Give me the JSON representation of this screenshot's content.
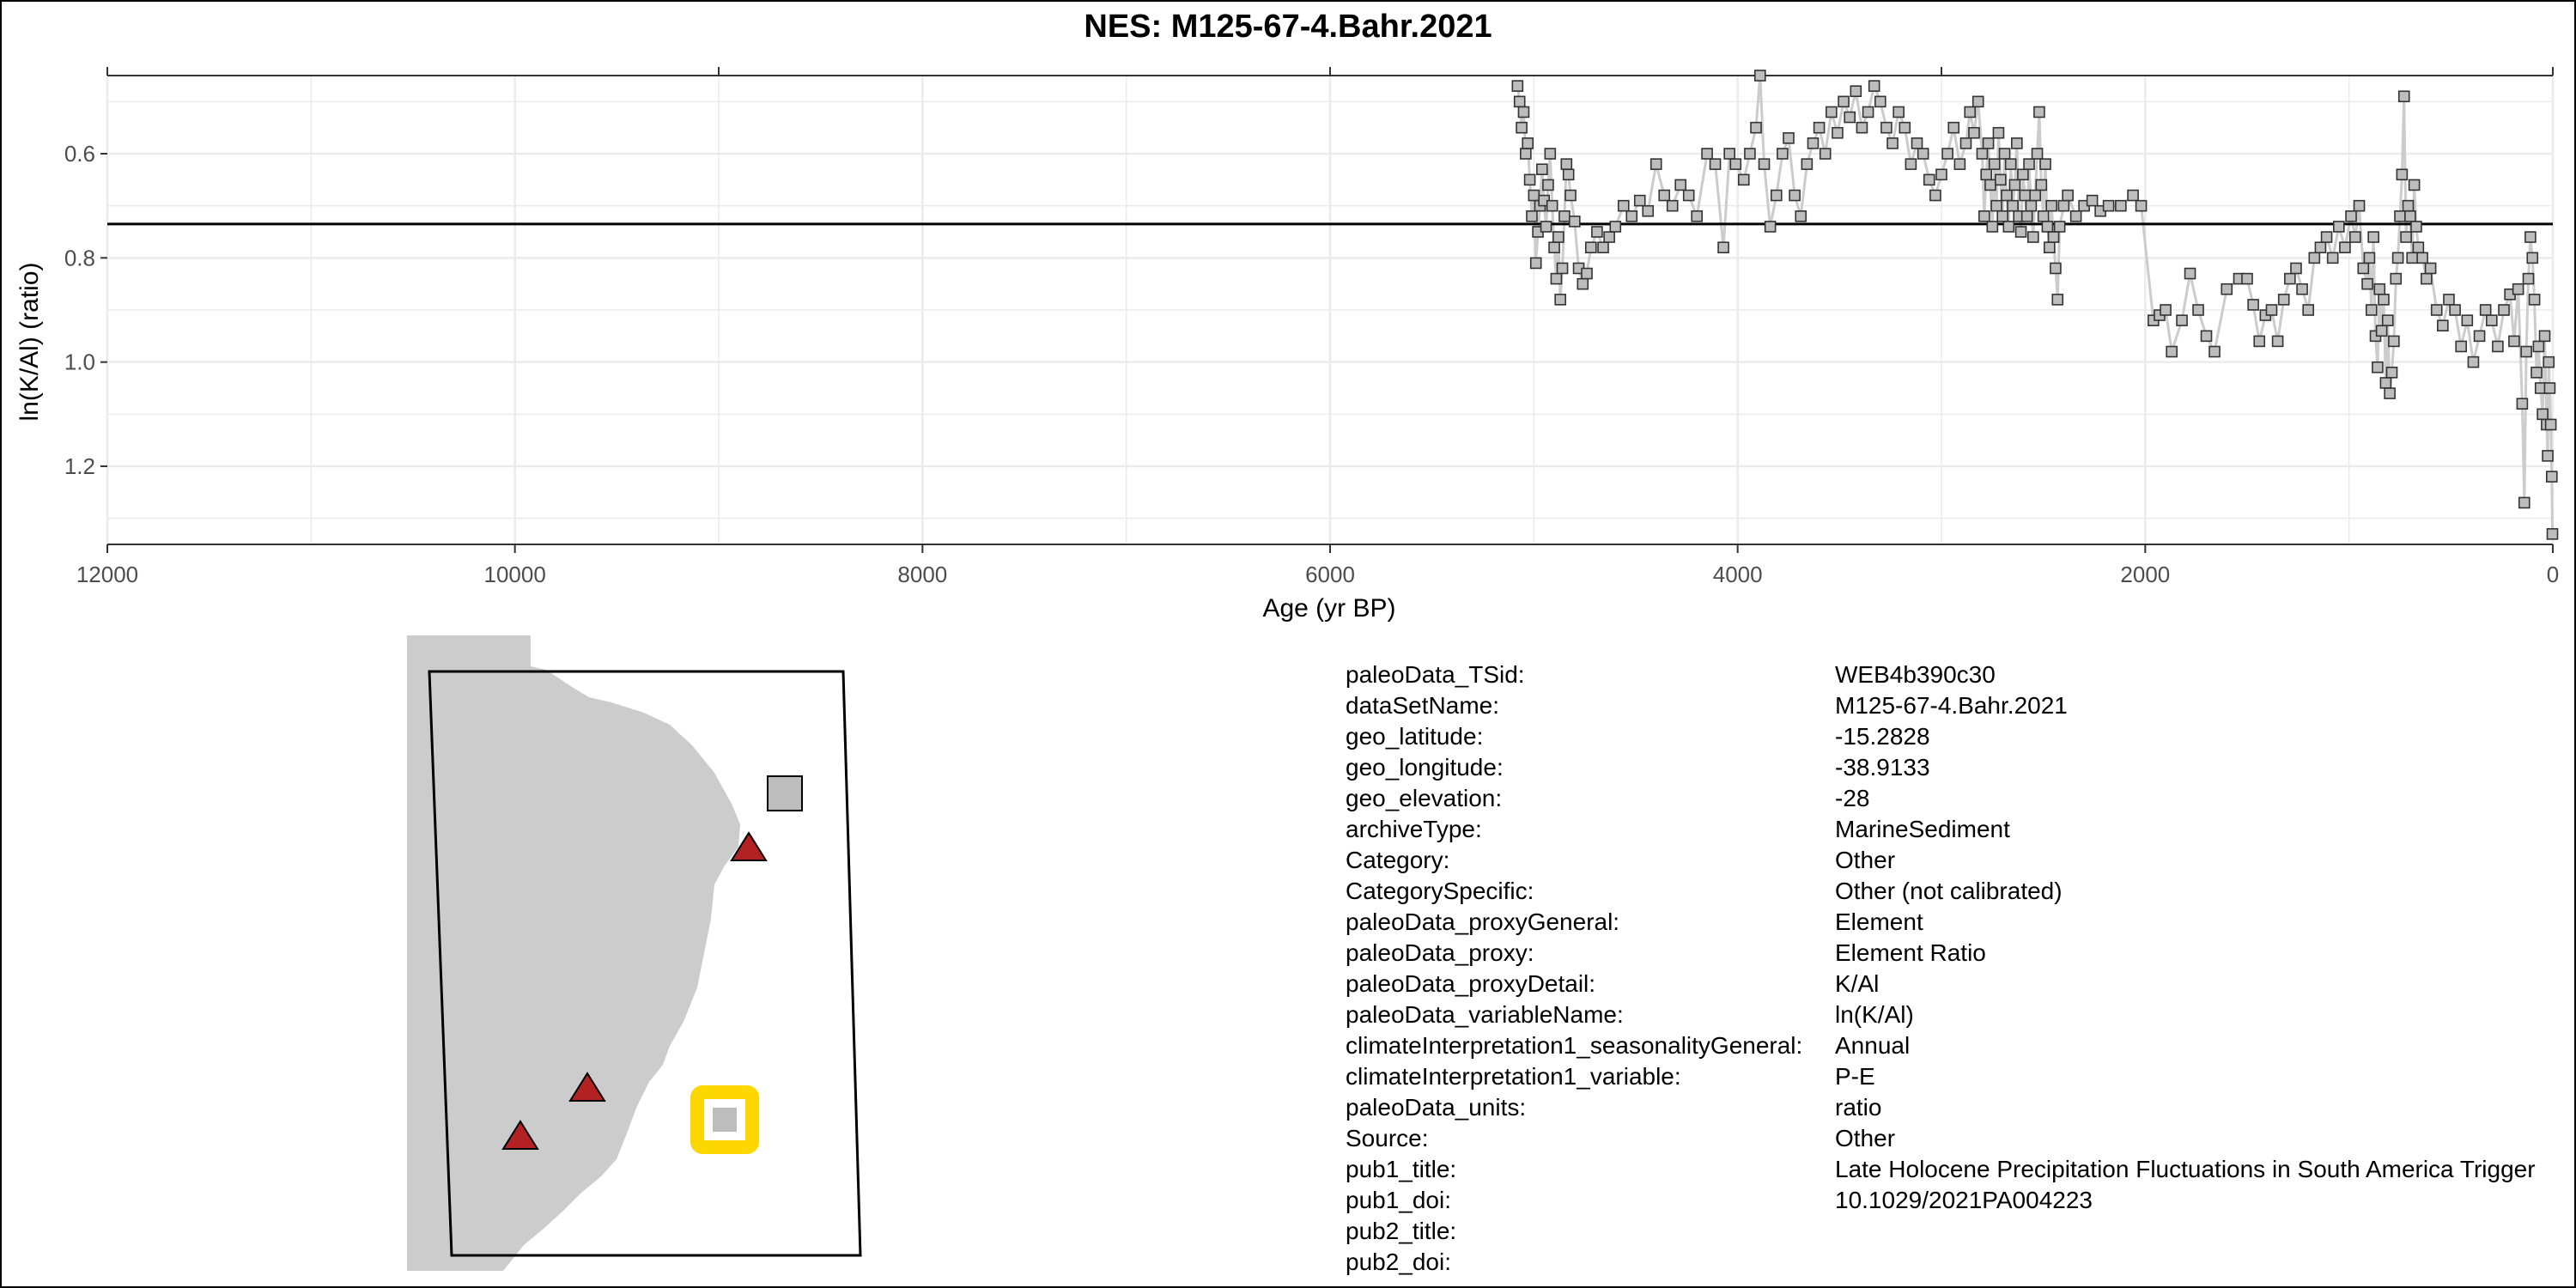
{
  "chart_data": {
    "type": "scatter",
    "title": "NES: M125-67-4.Bahr.2021",
    "xlabel": "Age (yr BP)",
    "ylabel": "ln(K/Al) (ratio)",
    "xlim": [
      12000,
      0
    ],
    "ylim": [
      1.35,
      0.45
    ],
    "y_inverted": true,
    "x_ticks": [
      12000,
      10000,
      8000,
      6000,
      4000,
      2000,
      0
    ],
    "x_tick_labels": [
      "12000",
      "10000",
      "8000",
      "6000",
      "4000",
      "2000",
      "0"
    ],
    "y_ticks": [
      0.6,
      0.8,
      1.0,
      1.2
    ],
    "y_tick_labels": [
      "0.6",
      "0.8",
      "1.0",
      "1.2"
    ],
    "grid": true,
    "reference_line_y": 0.735,
    "colors": {
      "marker_fill": "#bdbdbd",
      "marker_edge": "#333333",
      "connector": "#cccccc",
      "reference_line": "#000000",
      "grid": "#ebebeb"
    },
    "series": [
      {
        "marker": "square",
        "points": [
          [
            5080,
            0.47
          ],
          [
            5070,
            0.5
          ],
          [
            5060,
            0.55
          ],
          [
            5050,
            0.52
          ],
          [
            5040,
            0.6
          ],
          [
            5030,
            0.58
          ],
          [
            5020,
            0.65
          ],
          [
            5010,
            0.72
          ],
          [
            5000,
            0.68
          ],
          [
            4990,
            0.81
          ],
          [
            4980,
            0.75
          ],
          [
            4970,
            0.7
          ],
          [
            4960,
            0.63
          ],
          [
            4950,
            0.69
          ],
          [
            4940,
            0.74
          ],
          [
            4930,
            0.66
          ],
          [
            4920,
            0.6
          ],
          [
            4910,
            0.7
          ],
          [
            4900,
            0.78
          ],
          [
            4890,
            0.84
          ],
          [
            4880,
            0.76
          ],
          [
            4870,
            0.88
          ],
          [
            4860,
            0.82
          ],
          [
            4850,
            0.72
          ],
          [
            4840,
            0.62
          ],
          [
            4830,
            0.64
          ],
          [
            4820,
            0.68
          ],
          [
            4800,
            0.73
          ],
          [
            4780,
            0.82
          ],
          [
            4760,
            0.85
          ],
          [
            4740,
            0.83
          ],
          [
            4720,
            0.78
          ],
          [
            4690,
            0.75
          ],
          [
            4660,
            0.78
          ],
          [
            4630,
            0.76
          ],
          [
            4600,
            0.74
          ],
          [
            4560,
            0.7
          ],
          [
            4520,
            0.72
          ],
          [
            4480,
            0.69
          ],
          [
            4440,
            0.71
          ],
          [
            4400,
            0.62
          ],
          [
            4360,
            0.68
          ],
          [
            4320,
            0.7
          ],
          [
            4280,
            0.66
          ],
          [
            4240,
            0.68
          ],
          [
            4200,
            0.72
          ],
          [
            4150,
            0.6
          ],
          [
            4110,
            0.62
          ],
          [
            4070,
            0.78
          ],
          [
            4040,
            0.6
          ],
          [
            4010,
            0.62
          ],
          [
            3970,
            0.65
          ],
          [
            3940,
            0.6
          ],
          [
            3910,
            0.55
          ],
          [
            3890,
            0.45
          ],
          [
            3870,
            0.62
          ],
          [
            3840,
            0.74
          ],
          [
            3810,
            0.68
          ],
          [
            3780,
            0.6
          ],
          [
            3750,
            0.57
          ],
          [
            3720,
            0.68
          ],
          [
            3690,
            0.72
          ],
          [
            3660,
            0.62
          ],
          [
            3630,
            0.58
          ],
          [
            3600,
            0.55
          ],
          [
            3570,
            0.6
          ],
          [
            3540,
            0.52
          ],
          [
            3510,
            0.56
          ],
          [
            3480,
            0.5
          ],
          [
            3450,
            0.53
          ],
          [
            3420,
            0.48
          ],
          [
            3390,
            0.55
          ],
          [
            3360,
            0.52
          ],
          [
            3330,
            0.47
          ],
          [
            3300,
            0.5
          ],
          [
            3270,
            0.55
          ],
          [
            3240,
            0.58
          ],
          [
            3210,
            0.52
          ],
          [
            3180,
            0.55
          ],
          [
            3150,
            0.62
          ],
          [
            3120,
            0.58
          ],
          [
            3090,
            0.6
          ],
          [
            3060,
            0.65
          ],
          [
            3030,
            0.68
          ],
          [
            3000,
            0.64
          ],
          [
            2970,
            0.6
          ],
          [
            2940,
            0.55
          ],
          [
            2910,
            0.62
          ],
          [
            2880,
            0.58
          ],
          [
            2860,
            0.52
          ],
          [
            2840,
            0.56
          ],
          [
            2820,
            0.5
          ],
          [
            2800,
            0.6
          ],
          [
            2790,
            0.72
          ],
          [
            2780,
            0.64
          ],
          [
            2770,
            0.58
          ],
          [
            2760,
            0.66
          ],
          [
            2750,
            0.74
          ],
          [
            2740,
            0.62
          ],
          [
            2730,
            0.7
          ],
          [
            2720,
            0.56
          ],
          [
            2710,
            0.65
          ],
          [
            2700,
            0.72
          ],
          [
            2690,
            0.6
          ],
          [
            2680,
            0.68
          ],
          [
            2670,
            0.74
          ],
          [
            2660,
            0.62
          ],
          [
            2650,
            0.7
          ],
          [
            2640,
            0.66
          ],
          [
            2630,
            0.58
          ],
          [
            2620,
            0.72
          ],
          [
            2610,
            0.75
          ],
          [
            2600,
            0.64
          ],
          [
            2590,
            0.68
          ],
          [
            2580,
            0.72
          ],
          [
            2570,
            0.62
          ],
          [
            2560,
            0.7
          ],
          [
            2550,
            0.76
          ],
          [
            2540,
            0.68
          ],
          [
            2530,
            0.6
          ],
          [
            2520,
            0.52
          ],
          [
            2510,
            0.66
          ],
          [
            2500,
            0.72
          ],
          [
            2490,
            0.62
          ],
          [
            2480,
            0.74
          ],
          [
            2470,
            0.78
          ],
          [
            2460,
            0.7
          ],
          [
            2450,
            0.76
          ],
          [
            2440,
            0.82
          ],
          [
            2430,
            0.88
          ],
          [
            2420,
            0.74
          ],
          [
            2400,
            0.7
          ],
          [
            2380,
            0.68
          ],
          [
            2340,
            0.72
          ],
          [
            2300,
            0.7
          ],
          [
            2260,
            0.69
          ],
          [
            2220,
            0.71
          ],
          [
            2180,
            0.7
          ],
          [
            2120,
            0.7
          ],
          [
            2060,
            0.68
          ],
          [
            2020,
            0.7
          ],
          [
            1960,
            0.92
          ],
          [
            1930,
            0.91
          ],
          [
            1900,
            0.9
          ],
          [
            1870,
            0.98
          ],
          [
            1820,
            0.92
          ],
          [
            1780,
            0.83
          ],
          [
            1740,
            0.9
          ],
          [
            1700,
            0.95
          ],
          [
            1660,
            0.98
          ],
          [
            1600,
            0.86
          ],
          [
            1540,
            0.84
          ],
          [
            1500,
            0.84
          ],
          [
            1470,
            0.89
          ],
          [
            1440,
            0.96
          ],
          [
            1410,
            0.91
          ],
          [
            1380,
            0.9
          ],
          [
            1350,
            0.96
          ],
          [
            1320,
            0.88
          ],
          [
            1290,
            0.84
          ],
          [
            1260,
            0.82
          ],
          [
            1230,
            0.86
          ],
          [
            1200,
            0.9
          ],
          [
            1170,
            0.8
          ],
          [
            1140,
            0.78
          ],
          [
            1110,
            0.76
          ],
          [
            1080,
            0.8
          ],
          [
            1050,
            0.74
          ],
          [
            1020,
            0.78
          ],
          [
            990,
            0.72
          ],
          [
            970,
            0.76
          ],
          [
            950,
            0.7
          ],
          [
            930,
            0.82
          ],
          [
            910,
            0.85
          ],
          [
            900,
            0.8
          ],
          [
            890,
            0.9
          ],
          [
            880,
            0.76
          ],
          [
            870,
            0.95
          ],
          [
            860,
            1.01
          ],
          [
            850,
            0.86
          ],
          [
            840,
            0.94
          ],
          [
            830,
            0.88
          ],
          [
            820,
            1.04
          ],
          [
            810,
            0.92
          ],
          [
            800,
            1.06
          ],
          [
            790,
            1.02
          ],
          [
            780,
            0.96
          ],
          [
            770,
            0.84
          ],
          [
            760,
            0.8
          ],
          [
            750,
            0.72
          ],
          [
            740,
            0.64
          ],
          [
            730,
            0.49
          ],
          [
            720,
            0.76
          ],
          [
            710,
            0.7
          ],
          [
            700,
            0.72
          ],
          [
            690,
            0.8
          ],
          [
            680,
            0.66
          ],
          [
            670,
            0.74
          ],
          [
            660,
            0.78
          ],
          [
            640,
            0.8
          ],
          [
            620,
            0.84
          ],
          [
            600,
            0.82
          ],
          [
            570,
            0.9
          ],
          [
            540,
            0.93
          ],
          [
            510,
            0.88
          ],
          [
            480,
            0.9
          ],
          [
            450,
            0.97
          ],
          [
            420,
            0.92
          ],
          [
            390,
            1.0
          ],
          [
            360,
            0.95
          ],
          [
            330,
            0.9
          ],
          [
            300,
            0.92
          ],
          [
            270,
            0.97
          ],
          [
            240,
            0.9
          ],
          [
            210,
            0.87
          ],
          [
            190,
            0.96
          ],
          [
            170,
            0.86
          ],
          [
            150,
            1.08
          ],
          [
            140,
            1.27
          ],
          [
            130,
            0.98
          ],
          [
            120,
            0.84
          ],
          [
            110,
            0.76
          ],
          [
            100,
            0.8
          ],
          [
            90,
            0.88
          ],
          [
            80,
            1.02
          ],
          [
            70,
            0.97
          ],
          [
            60,
            1.05
          ],
          [
            50,
            1.1
          ],
          [
            40,
            0.95
          ],
          [
            30,
            1.12
          ],
          [
            25,
            1.18
          ],
          [
            20,
            1.0
          ],
          [
            15,
            1.05
          ],
          [
            10,
            1.12
          ],
          [
            5,
            1.22
          ],
          [
            2,
            1.33
          ]
        ]
      }
    ]
  },
  "map": {
    "colors": {
      "land": "#cccccc",
      "frame": "#000000",
      "site_marker": "#b22222",
      "record_marker": "#bdbdbd",
      "highlight": "#ffd700"
    }
  },
  "metadata": [
    {
      "key": "paleoData_TSid:",
      "value": "WEB4b390c30"
    },
    {
      "key": "dataSetName:",
      "value": "M125-67-4.Bahr.2021"
    },
    {
      "key": "geo_latitude:",
      "value": "-15.2828"
    },
    {
      "key": "geo_longitude:",
      "value": "-38.9133"
    },
    {
      "key": "geo_elevation:",
      "value": "-28"
    },
    {
      "key": "archiveType:",
      "value": "MarineSediment"
    },
    {
      "key": "Category:",
      "value": "Other"
    },
    {
      "key": "CategorySpecific:",
      "value": "Other (not calibrated)"
    },
    {
      "key": "paleoData_proxyGeneral:",
      "value": "Element"
    },
    {
      "key": "paleoData_proxy:",
      "value": "Element Ratio"
    },
    {
      "key": "paleoData_proxyDetail:",
      "value": "K/Al"
    },
    {
      "key": "paleoData_variableName:",
      "value": "ln(K/Al)"
    },
    {
      "key": "climateInterpretation1_seasonalityGeneral:",
      "value": "Annual"
    },
    {
      "key": "climateInterpretation1_variable:",
      "value": "P-E"
    },
    {
      "key": "paleoData_units:",
      "value": "ratio"
    },
    {
      "key": "Source:",
      "value": "Other"
    },
    {
      "key": "pub1_title:",
      "value": "Late Holocene Precipitation Fluctuations in South America Trigger"
    },
    {
      "key": "pub1_doi:",
      "value": "10.1029/2021PA004223"
    },
    {
      "key": "pub2_title:",
      "value": ""
    },
    {
      "key": "pub2_doi:",
      "value": ""
    }
  ]
}
